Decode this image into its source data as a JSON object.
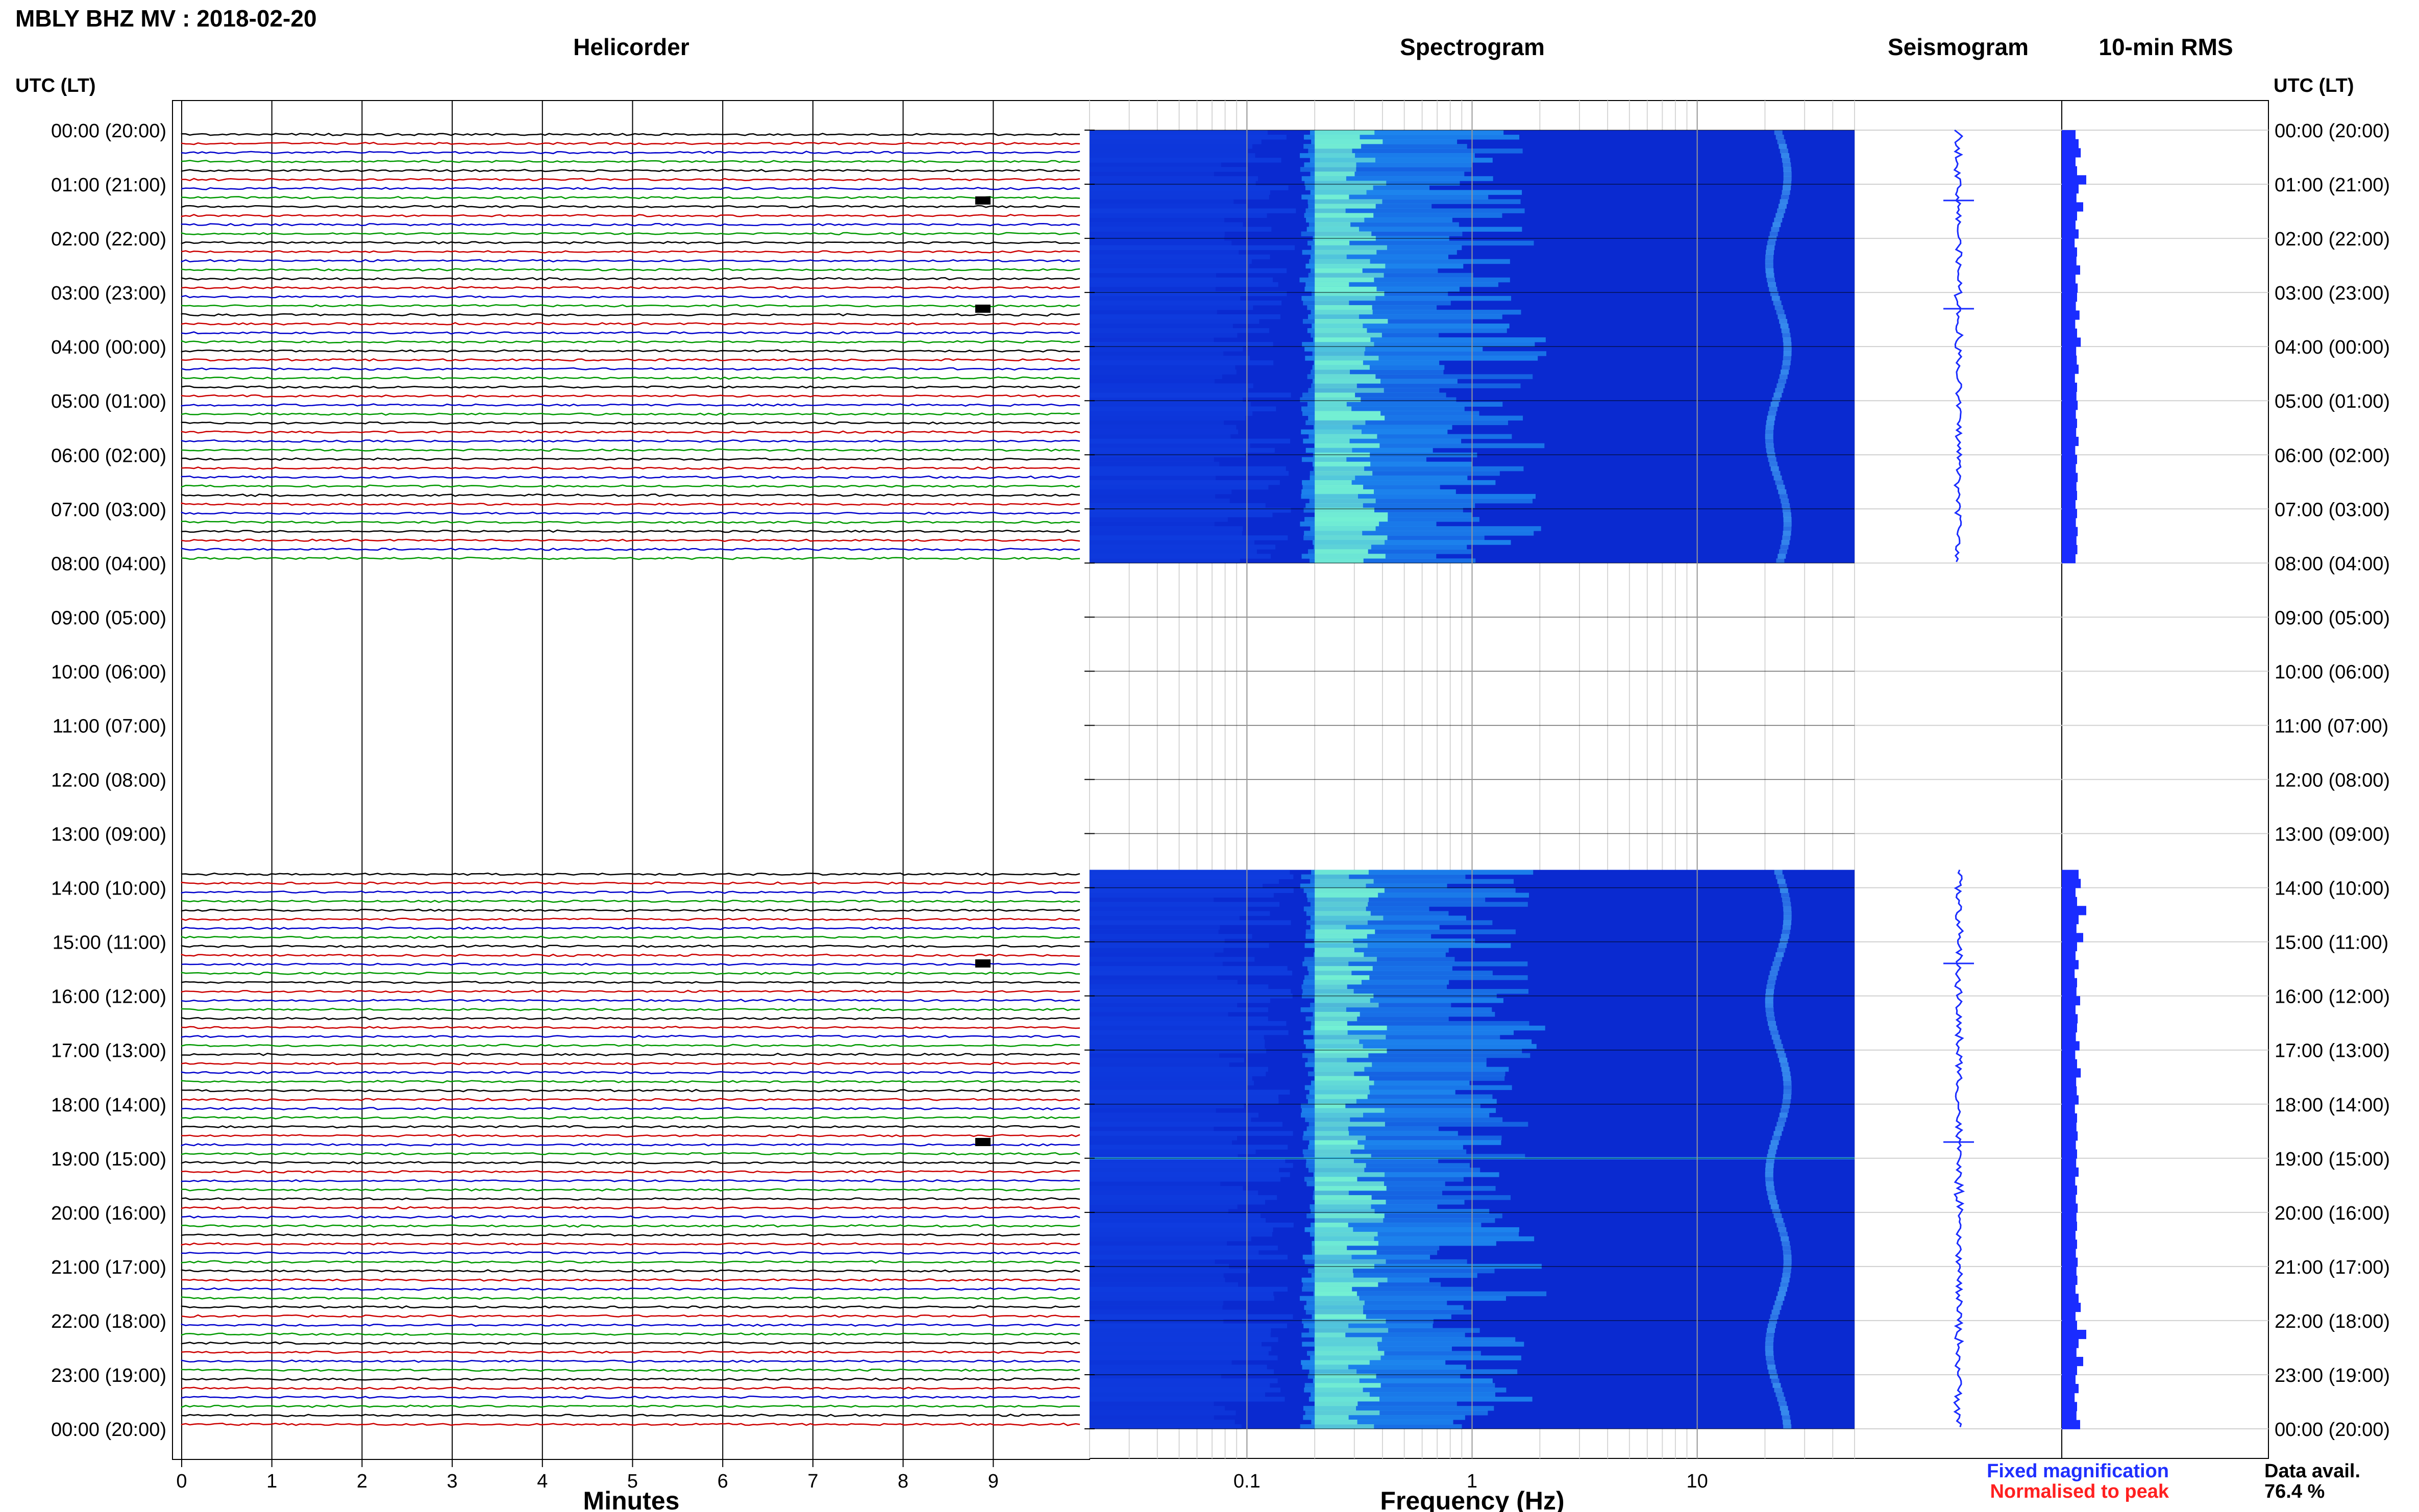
{
  "header": {
    "station_title": "MBLY BHZ MV : 2018-02-20",
    "utc_lt_label": "UTC (LT)"
  },
  "panels": {
    "helicorder": "Helicorder",
    "spectrogram": "Spectrogram",
    "seismogram": "Seismogram",
    "rms": "10-min RMS"
  },
  "axes": {
    "minutes_label": "Minutes",
    "frequency_label": "Frequency (Hz)"
  },
  "legend": {
    "fixed": "Fixed magnification",
    "normalised": "Normalised to peak",
    "data_avail_label": "Data avail.",
    "data_avail_value": "76.4 %"
  },
  "colors": {
    "trace_cycle": [
      "#000000",
      "#cc0000",
      "#0000cc",
      "#009900"
    ],
    "spec_low": "#0a2ad0",
    "spec_mid": "#1f8ff0",
    "spec_high": "#7fffd0",
    "seismo": "#1a2cff",
    "rms": "#1a2cff",
    "fixed_text": "#1f2fff",
    "norm_text": "#ff2020"
  },
  "chart_data": {
    "type": "heatmap",
    "time_tick_labels": [
      "00:00 (20:00)",
      "01:00 (21:00)",
      "02:00 (22:00)",
      "03:00 (23:00)",
      "04:00 (00:00)",
      "05:00 (01:00)",
      "06:00 (02:00)",
      "07:00 (03:00)",
      "08:00 (04:00)",
      "09:00 (05:00)",
      "10:00 (06:00)",
      "11:00 (07:00)",
      "12:00 (08:00)",
      "13:00 (09:00)",
      "14:00 (10:00)",
      "15:00 (11:00)",
      "16:00 (12:00)",
      "17:00 (13:00)",
      "18:00 (14:00)",
      "19:00 (15:00)",
      "20:00 (16:00)",
      "21:00 (17:00)",
      "22:00 (18:00)",
      "23:00 (19:00)",
      "00:00 (20:00)"
    ],
    "minutes_ticks": [
      0,
      1,
      2,
      3,
      4,
      5,
      6,
      7,
      8,
      9
    ],
    "minutes_range": [
      0,
      10
    ],
    "frequency_ticks": [
      0.1,
      1,
      10
    ],
    "frequency_range_hz": [
      0.02,
      50
    ],
    "frequency_scale": "log",
    "time_range_hours": [
      0,
      24
    ],
    "data_segments_hours": [
      [
        0,
        8
      ],
      [
        13.67,
        24
      ]
    ],
    "gap_hours": [
      8,
      13.67
    ],
    "trace_interval_min": 10,
    "spectral_band_hz": [
      0.2,
      0.7
    ],
    "spectral_line_hz": 22,
    "rms_profile_rel": [
      0.45,
      0.55,
      0.62,
      0.45,
      0.5,
      0.8,
      0.55,
      0.48,
      0.7,
      0.5,
      0.45,
      0.55,
      0.42,
      0.5,
      0.48,
      0.6,
      0.45,
      0.52,
      0.5,
      0.46,
      0.58,
      0.44,
      0.5,
      0.62,
      0.47,
      0.49,
      0.55,
      0.43,
      0.5,
      0.48,
      0.52,
      0.46,
      0.5,
      0.47,
      0.55,
      0.44,
      0.5,
      0.46,
      0.52,
      0.48,
      0.5,
      0.45,
      0.5,
      0.46,
      0.52,
      0.48,
      0.51
    ],
    "events_hours": [
      1.3,
      3.3,
      15.4,
      18.7
    ]
  }
}
